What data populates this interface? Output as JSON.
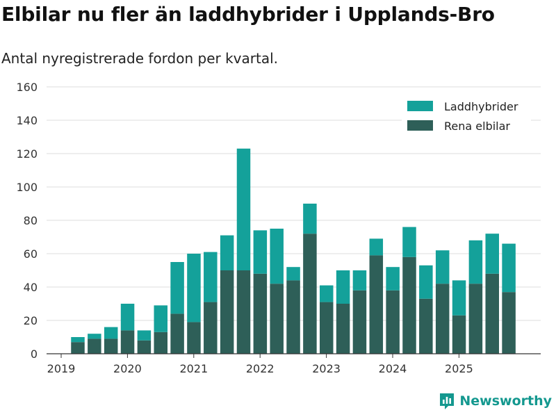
{
  "header": {
    "title": "Elbilar nu fler än laddhybrider i Upplands-Bro",
    "subtitle": "Antal nyregistrerade fordon per kvartal."
  },
  "brand": {
    "name": "Newsworthy",
    "icon": "newsworthy-logo-icon"
  },
  "colors": {
    "laddhybrider": "#14a19a",
    "elbilar": "#2e5f58",
    "grid": "#dddddd",
    "axis": "#333333"
  },
  "chart_data": {
    "type": "bar",
    "stacked": true,
    "title": "Elbilar nu fler än laddhybrider i Upplands-Bro",
    "subtitle": "Antal nyregistrerade fordon per kvartal.",
    "xlabel": "",
    "ylabel": "",
    "ylim": [
      0,
      160
    ],
    "yticks": [
      0,
      20,
      40,
      60,
      80,
      100,
      120,
      140,
      160
    ],
    "xticks": [
      "2019",
      "2020",
      "2021",
      "2022",
      "2023",
      "2024",
      "2025"
    ],
    "grid": true,
    "legend_position": "top-right",
    "categories": [
      "2019Q2",
      "2019Q3",
      "2019Q4",
      "2020Q1",
      "2020Q2",
      "2020Q3",
      "2020Q4",
      "2021Q1",
      "2021Q2",
      "2021Q3",
      "2021Q4",
      "2022Q1",
      "2022Q2",
      "2022Q3",
      "2022Q4",
      "2023Q1",
      "2023Q2",
      "2023Q3",
      "2023Q4",
      "2024Q1",
      "2024Q2",
      "2024Q3",
      "2024Q4",
      "2025Q1",
      "2025Q2",
      "2025Q3",
      "2025Q4"
    ],
    "series": [
      {
        "name": "Rena elbilar",
        "color_key": "elbilar",
        "values": [
          7,
          9,
          9,
          14,
          8,
          13,
          24,
          19,
          31,
          50,
          50,
          48,
          42,
          44,
          72,
          31,
          30,
          38,
          59,
          38,
          58,
          33,
          42,
          23,
          42,
          48,
          37
        ]
      },
      {
        "name": "Laddhybrider",
        "color_key": "laddhybrider",
        "values": [
          3,
          3,
          7,
          16,
          6,
          16,
          31,
          41,
          30,
          21,
          73,
          26,
          33,
          8,
          18,
          10,
          20,
          12,
          10,
          14,
          18,
          20,
          20,
          21,
          26,
          24,
          29
        ]
      }
    ],
    "legend": [
      "Laddhybrider",
      "Rena elbilar"
    ]
  }
}
